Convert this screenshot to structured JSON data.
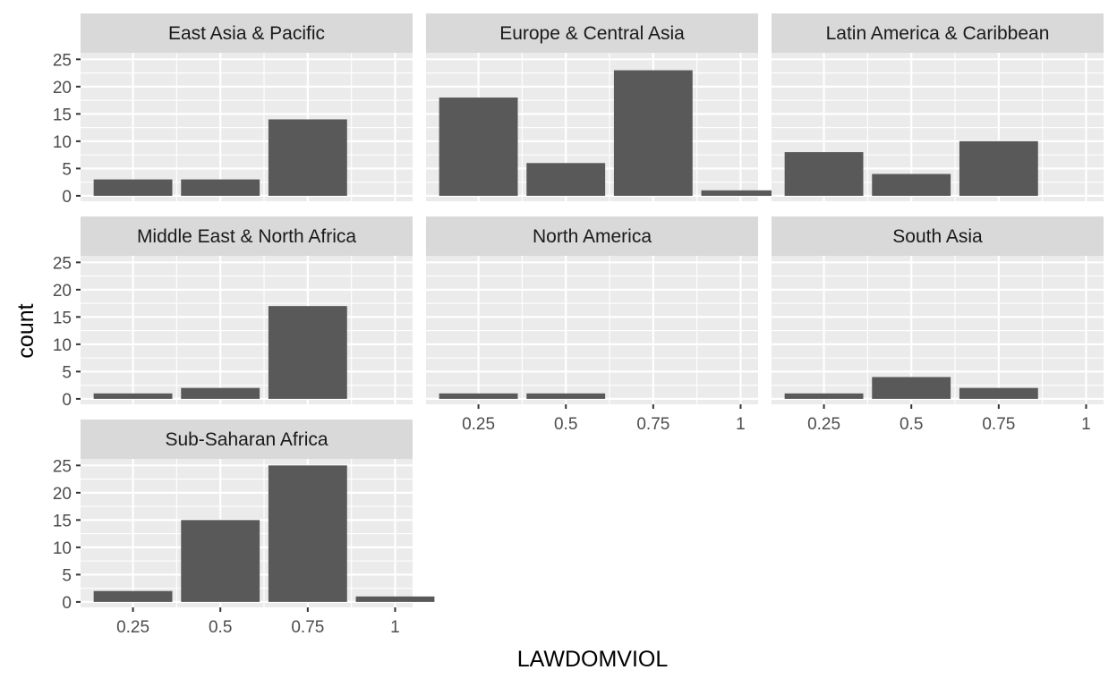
{
  "chart_data": {
    "type": "bar",
    "facet_layout": "3 columns, shared axes",
    "xlabel": "LAWDOMVIOL",
    "ylabel": "count",
    "x_ticks": [
      "0.25",
      "0.5",
      "0.75",
      "1"
    ],
    "x_values": [
      0.25,
      0.5,
      0.75,
      1
    ],
    "y_ticks": [
      0,
      5,
      10,
      15,
      20,
      25
    ],
    "ylim": [
      0,
      26.2
    ],
    "grid": true,
    "colors": {
      "bar": "#595959",
      "panel": "#ebebeb",
      "strip": "#d9d9d9",
      "grid": "#ffffff"
    },
    "facets": [
      {
        "name": "East Asia & Pacific",
        "values": [
          3,
          3,
          14,
          0
        ]
      },
      {
        "name": "Europe & Central Asia",
        "values": [
          18,
          6,
          23,
          1
        ]
      },
      {
        "name": "Latin America & Caribbean",
        "values": [
          8,
          4,
          10,
          0
        ]
      },
      {
        "name": "Middle East & North Africa",
        "values": [
          1,
          2,
          17,
          0
        ]
      },
      {
        "name": "North America",
        "values": [
          1,
          1,
          0,
          0
        ]
      },
      {
        "name": "South Asia",
        "values": [
          1,
          4,
          2,
          0
        ]
      },
      {
        "name": "Sub-Saharan Africa",
        "values": [
          2,
          15,
          25,
          1
        ]
      }
    ]
  }
}
